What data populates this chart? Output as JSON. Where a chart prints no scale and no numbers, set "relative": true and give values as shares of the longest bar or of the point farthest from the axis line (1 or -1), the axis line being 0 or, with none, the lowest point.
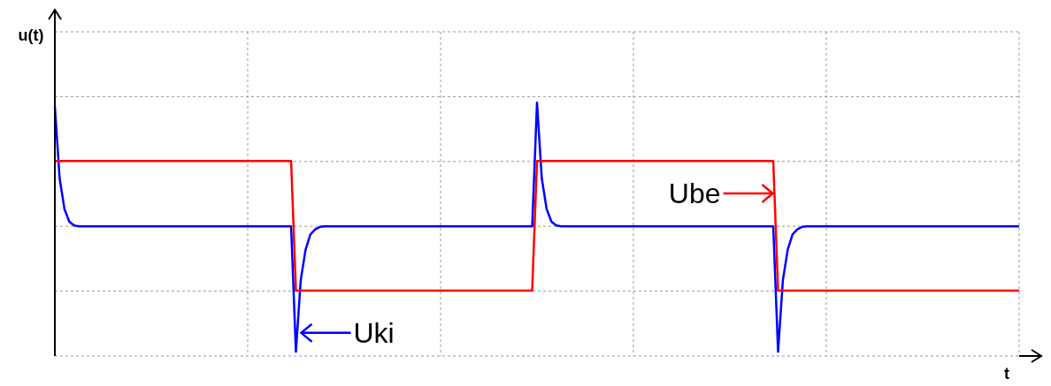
{
  "chart_data": {
    "type": "line",
    "xlabel": "t",
    "ylabel": "u(t)",
    "relative": true,
    "grid": true,
    "categories": [
      null,
      null,
      null,
      null,
      null,
      null,
      null,
      null,
      null,
      null,
      null,
      null,
      null,
      null,
      null,
      null,
      null,
      null,
      null,
      null,
      null,
      null,
      null,
      null,
      null,
      null,
      null,
      null,
      null,
      null,
      null,
      null,
      null,
      null,
      null,
      null,
      null,
      null,
      null,
      null,
      null,
      null,
      null,
      null,
      null,
      null,
      null,
      null,
      null,
      null,
      null,
      null,
      null,
      null,
      null,
      null,
      null,
      null,
      null,
      null,
      null,
      null,
      null,
      null,
      null,
      null,
      null,
      null,
      null,
      null,
      null,
      null,
      null,
      null,
      null,
      null,
      null,
      null,
      null,
      null,
      null,
      null,
      null,
      null,
      null,
      null,
      null,
      null,
      null,
      null,
      null,
      null,
      null,
      null,
      null,
      null,
      null,
      null,
      null,
      null,
      null,
      null,
      null,
      null,
      null,
      null,
      null,
      null,
      null,
      null,
      null,
      null,
      null,
      null,
      null,
      null,
      null,
      null,
      null,
      null,
      null,
      null,
      null,
      null,
      null,
      null,
      null,
      null,
      null,
      null,
      null,
      null,
      null,
      null,
      null,
      null,
      null,
      null,
      null,
      null,
      null,
      null,
      null,
      null,
      null,
      null,
      null,
      null,
      null,
      null,
      null,
      null,
      null,
      null,
      null,
      null,
      null,
      null,
      null,
      null,
      null,
      null,
      null,
      null,
      null,
      null,
      null,
      null,
      null,
      null,
      null,
      null,
      null,
      null,
      null,
      null,
      null,
      null,
      null,
      null,
      null,
      null,
      null,
      null,
      null,
      null,
      null,
      null,
      null,
      null,
      null,
      null,
      null,
      null,
      null,
      null,
      null,
      null,
      null,
      null,
      null
    ],
    "series": [
      {
        "name": "Uki",
        "color": "#0000ff",
        "values": [
          0.986,
          0.7,
          0.58,
          0.53,
          0.515,
          0.512,
          0.512,
          0.512,
          0.512,
          0.512,
          0.512,
          0.512,
          0.512,
          0.512,
          0.512,
          0.512,
          0.512,
          0.512,
          0.512,
          0.512,
          0.512,
          0.512,
          0.512,
          0.512,
          0.512,
          0.512,
          0.512,
          0.512,
          0.512,
          0.512,
          0.512,
          0.512,
          0.512,
          0.512,
          0.512,
          0.512,
          0.512,
          0.512,
          0.512,
          0.512,
          0.512,
          0.512,
          0.512,
          0.512,
          0.512,
          0.512,
          0.512,
          0.512,
          0.512,
          0.512,
          0.017,
          0.3,
          0.42,
          0.48,
          0.5,
          0.51,
          0.512,
          0.512,
          0.512,
          0.512,
          0.512,
          0.512,
          0.512,
          0.512,
          0.512,
          0.512,
          0.512,
          0.512,
          0.512,
          0.512,
          0.512,
          0.512,
          0.512,
          0.512,
          0.512,
          0.512,
          0.512,
          0.512,
          0.512,
          0.512,
          0.512,
          0.512,
          0.512,
          0.512,
          0.512,
          0.512,
          0.512,
          0.512,
          0.512,
          0.512,
          0.512,
          0.512,
          0.512,
          0.512,
          0.512,
          0.512,
          0.512,
          0.512,
          0.512,
          0.512,
          1,
          0.7,
          0.58,
          0.53,
          0.515,
          0.512,
          0.512,
          0.512,
          0.512,
          0.512,
          0.512,
          0.512,
          0.512,
          0.512,
          0.512,
          0.512,
          0.512,
          0.512,
          0.512,
          0.512,
          0.512,
          0.512,
          0.512,
          0.512,
          0.512,
          0.512,
          0.512,
          0.512,
          0.512,
          0.512,
          0.512,
          0.512,
          0.512,
          0.512,
          0.512,
          0.512,
          0.512,
          0.512,
          0.512,
          0.512,
          0.512,
          0.512,
          0.512,
          0.512,
          0.512,
          0.512,
          0.512,
          0.512,
          0.512,
          0.512,
          0.017,
          0.3,
          0.42,
          0.48,
          0.5,
          0.51,
          0.512,
          0.512,
          0.512,
          0.512,
          0.512,
          0.512,
          0.512,
          0.512,
          0.512,
          0.512,
          0.512,
          0.512,
          0.512,
          0.512,
          0.512,
          0.512,
          0.512,
          0.512,
          0.512,
          0.512,
          0.512,
          0.512,
          0.512,
          0.512,
          0.512,
          0.512,
          0.512,
          0.512,
          0.512,
          0.512,
          0.512,
          0.512,
          0.512,
          0.512,
          0.512,
          0.512,
          0.512,
          0.512,
          0.512,
          0.512,
          0.512,
          0.512,
          0.512,
          0.512,
          0.512
        ]
      },
      {
        "name": "Ube",
        "color": "#ff0000",
        "values": [
          0.77,
          0.77,
          0.77,
          0.77,
          0.77,
          0.77,
          0.77,
          0.77,
          0.77,
          0.77,
          0.77,
          0.77,
          0.77,
          0.77,
          0.77,
          0.77,
          0.77,
          0.77,
          0.77,
          0.77,
          0.77,
          0.77,
          0.77,
          0.77,
          0.77,
          0.77,
          0.77,
          0.77,
          0.77,
          0.77,
          0.77,
          0.77,
          0.77,
          0.77,
          0.77,
          0.77,
          0.77,
          0.77,
          0.77,
          0.77,
          0.77,
          0.77,
          0.77,
          0.77,
          0.77,
          0.77,
          0.77,
          0.77,
          0.77,
          0.77,
          0.258,
          0.258,
          0.258,
          0.258,
          0.258,
          0.258,
          0.258,
          0.258,
          0.258,
          0.258,
          0.258,
          0.258,
          0.258,
          0.258,
          0.258,
          0.258,
          0.258,
          0.258,
          0.258,
          0.258,
          0.258,
          0.258,
          0.258,
          0.258,
          0.258,
          0.258,
          0.258,
          0.258,
          0.258,
          0.258,
          0.258,
          0.258,
          0.258,
          0.258,
          0.258,
          0.258,
          0.258,
          0.258,
          0.258,
          0.258,
          0.258,
          0.258,
          0.258,
          0.258,
          0.258,
          0.258,
          0.258,
          0.258,
          0.258,
          0.258,
          0.77,
          0.77,
          0.77,
          0.77,
          0.77,
          0.77,
          0.77,
          0.77,
          0.77,
          0.77,
          0.77,
          0.77,
          0.77,
          0.77,
          0.77,
          0.77,
          0.77,
          0.77,
          0.77,
          0.77,
          0.77,
          0.77,
          0.77,
          0.77,
          0.77,
          0.77,
          0.77,
          0.77,
          0.77,
          0.77,
          0.77,
          0.77,
          0.77,
          0.77,
          0.77,
          0.77,
          0.77,
          0.77,
          0.77,
          0.77,
          0.77,
          0.77,
          0.77,
          0.77,
          0.77,
          0.77,
          0.77,
          0.77,
          0.77,
          0.77,
          0.258,
          0.258,
          0.258,
          0.258,
          0.258,
          0.258,
          0.258,
          0.258,
          0.258,
          0.258,
          0.258,
          0.258,
          0.258,
          0.258,
          0.258,
          0.258,
          0.258,
          0.258,
          0.258,
          0.258,
          0.258,
          0.258,
          0.258,
          0.258,
          0.258,
          0.258,
          0.258,
          0.258,
          0.258,
          0.258,
          0.258,
          0.258,
          0.258,
          0.258,
          0.258,
          0.258,
          0.258,
          0.258,
          0.258,
          0.258,
          0.258,
          0.258,
          0.258,
          0.258,
          0.258,
          0.258,
          0.258,
          0.258,
          0.258,
          0.258,
          0.258
        ]
      }
    ]
  }
}
